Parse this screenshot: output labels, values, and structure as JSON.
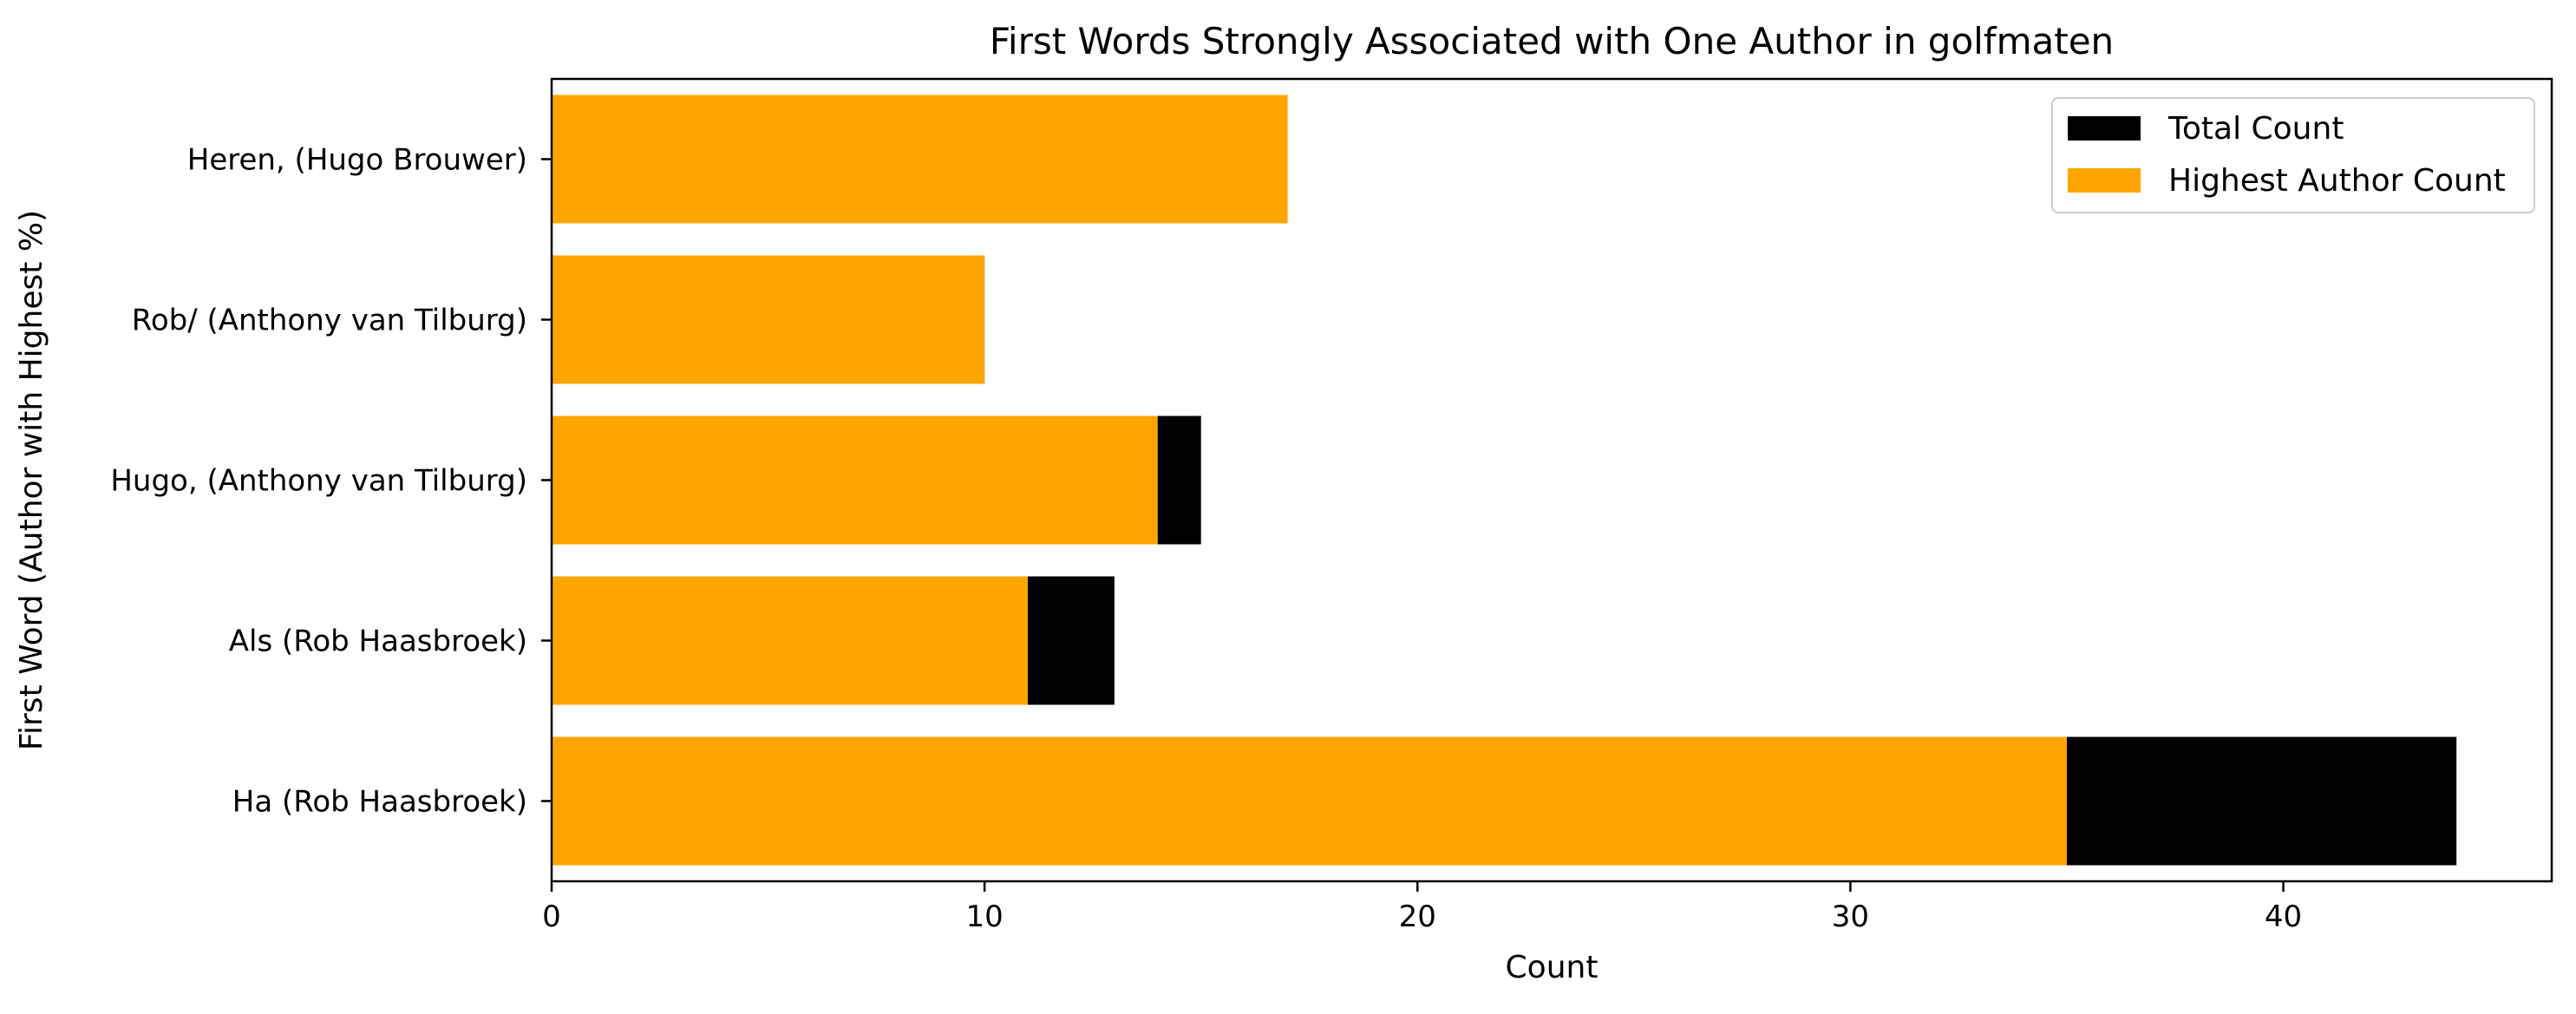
{
  "chart_data": {
    "type": "bar",
    "orientation": "horizontal",
    "title": "First Words Strongly Associated with One Author in golfmaten",
    "xlabel": "Count",
    "ylabel": "First Word (Author with Highest %)",
    "categories": [
      "Ha (Rob Haasbroek)",
      "Als (Rob Haasbroek)",
      "Hugo, (Anthony van Tilburg)",
      "Rob/ (Anthony van Tilburg)",
      "Heren, (Hugo Brouwer)"
    ],
    "series": [
      {
        "name": "Total Count",
        "color": "#000000",
        "values": [
          44,
          13,
          15,
          10,
          17
        ]
      },
      {
        "name": "Highest Author Count",
        "color": "#ffa500",
        "values": [
          35,
          11,
          14,
          10,
          17
        ]
      }
    ],
    "xlim": [
      0,
      46.2
    ],
    "xticks": [
      0,
      10,
      20,
      30,
      40
    ],
    "grid": false,
    "legend_position": "top-right"
  }
}
